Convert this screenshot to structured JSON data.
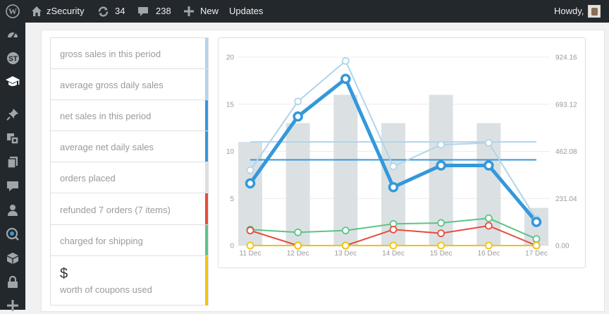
{
  "admin_bar": {
    "site_name": "zSecurity",
    "updates_count": "34",
    "comments_count": "238",
    "new_label": "New",
    "updates_label": "Updates",
    "howdy": "Howdy,"
  },
  "sidebar": {
    "icons": [
      "dashboard-icon",
      "plugin-custom-icon",
      "graduation-cap-icon",
      "pin-icon",
      "media-icon",
      "pages-icon",
      "comments-icon",
      "users-icon",
      "woocommerce-icon",
      "box-icon",
      "lock-icon",
      "plus-icon"
    ]
  },
  "legend": {
    "items": [
      {
        "label": "gross sales in this period",
        "color": "#b1d4ea"
      },
      {
        "label": "average gross daily sales",
        "color": "#b1d4ea"
      },
      {
        "label": "net sales in this period",
        "color": "#3498db"
      },
      {
        "label": "average net daily sales",
        "color": "#3498db"
      },
      {
        "label": "orders placed",
        "color": "#dbe1e3"
      },
      {
        "label": "refunded 7 orders (7 items)",
        "color": "#e74c3c"
      },
      {
        "label": "charged for shipping",
        "color": "#5cc488"
      },
      {
        "currency": "$",
        "label": "worth of coupons used",
        "color": "#f1c40f"
      }
    ]
  },
  "chart_data": {
    "type": "line",
    "categories": [
      "11 Dec",
      "12 Dec",
      "13 Dec",
      "14 Dec",
      "15 Dec",
      "16 Dec",
      "17 Dec"
    ],
    "y_left_ticks": [
      "0",
      "5",
      "10",
      "15",
      "20"
    ],
    "y_right_ticks": [
      "0.00",
      "231.04",
      "462.08",
      "693.12",
      "924.16"
    ],
    "ylim_left": [
      0,
      20
    ],
    "ylim_right": [
      0,
      924.16
    ],
    "bars": {
      "values": [
        11,
        13,
        16,
        13,
        16,
        13,
        4
      ],
      "color": "#dbe1e3"
    },
    "series": [
      {
        "values": [
          8,
          15.3,
          19.6,
          8.4,
          10.7,
          10.9,
          2.8
        ],
        "color": "#b1d4ea",
        "axis": "left"
      },
      {
        "values": [
          6.6,
          13.7,
          17.7,
          6.2,
          8.5,
          8.5,
          2.5
        ],
        "color": "#3498db",
        "axis": "left"
      },
      {
        "values": [
          1.7,
          1.4,
          1.6,
          2.3,
          2.4,
          2.9,
          0.7
        ],
        "color": "#5cc488",
        "axis": "left"
      },
      {
        "values": [
          1.6,
          0,
          0,
          1.7,
          1.3,
          2.1,
          0
        ],
        "color": "#e74c3c",
        "axis": "left"
      },
      {
        "values": [
          0,
          0,
          0,
          0,
          0,
          0,
          0
        ],
        "color": "#f1c40f",
        "axis": "left"
      }
    ],
    "averages": [
      {
        "value": 11,
        "color": "#b1d4ea"
      },
      {
        "value": 9.1,
        "color": "#3498db"
      }
    ],
    "grid": true
  }
}
